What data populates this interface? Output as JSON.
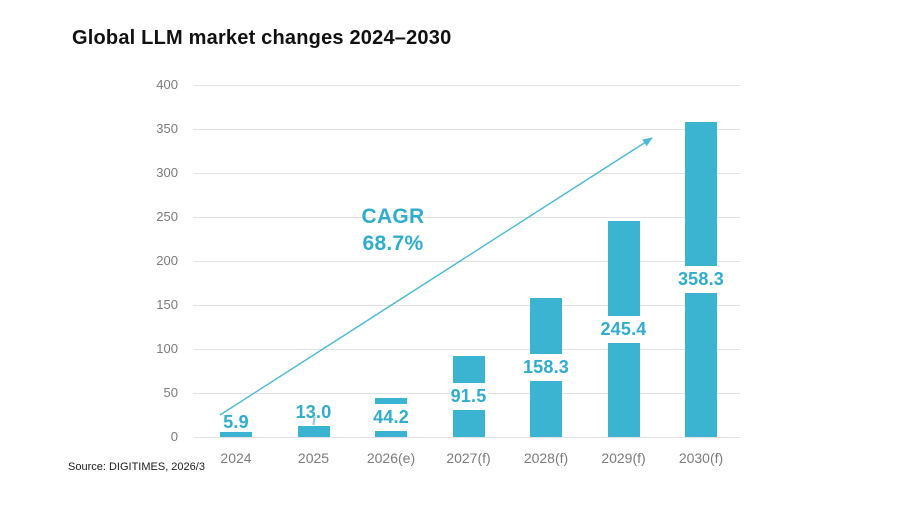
{
  "chart_data": {
    "type": "bar",
    "title": "Global LLM market changes 2024–2030",
    "source": "Source: DIGITIMES, 2026/3",
    "categories": [
      "2024",
      "2025",
      "2026(e)",
      "2027(f)",
      "2028(f)",
      "2029(f)",
      "2030(f)"
    ],
    "values": [
      5.9,
      13.0,
      44.2,
      91.5,
      158.3,
      245.4,
      358.3
    ],
    "value_labels": [
      "5.9",
      "13.0",
      "44.2",
      "91.5",
      "158.3",
      "245.4",
      "358.3"
    ],
    "ylim": [
      0,
      400
    ],
    "yticks": [
      0,
      50,
      100,
      150,
      200,
      250,
      300,
      350,
      400
    ],
    "grid": true,
    "legend": false,
    "annotation": {
      "line1": "CAGR",
      "line2": "68.7%"
    },
    "colors": {
      "bar": "#3bb4d2",
      "value_label": "#30accf",
      "arrow": "#49b9d6",
      "axis_text": "#7b7b7b",
      "gridline": "#e2e2e2",
      "title": "#111111",
      "source_text": "#1a1a1a"
    }
  }
}
